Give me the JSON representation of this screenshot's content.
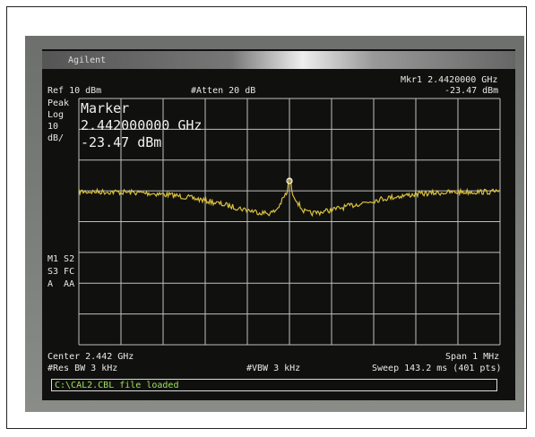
{
  "brand": "Agilent",
  "header": {
    "ref": "Ref 10 dBm",
    "atten": "#Atten 20 dB",
    "marker_freq": "Mkr1 2.4420000 GHz",
    "marker_level": "-23.47 dBm"
  },
  "left_labels": [
    "Peak",
    "Log",
    "10",
    "dB/"
  ],
  "marker": {
    "title": "Marker",
    "freq": "2.442000000 GHz",
    "level": "-23.47 dBm"
  },
  "mode_labels": [
    "M1 S2",
    "S3 FC",
    "A  AA"
  ],
  "footer": {
    "center": "Center 2.442 GHz",
    "rbw": "#Res BW 3 kHz",
    "vbw": "#VBW 3 kHz",
    "span": "Span 1 MHz",
    "sweep": "Sweep 143.2 ms (401 pts)"
  },
  "status_bar": "C:\\CAL2.CBL file loaded"
}
